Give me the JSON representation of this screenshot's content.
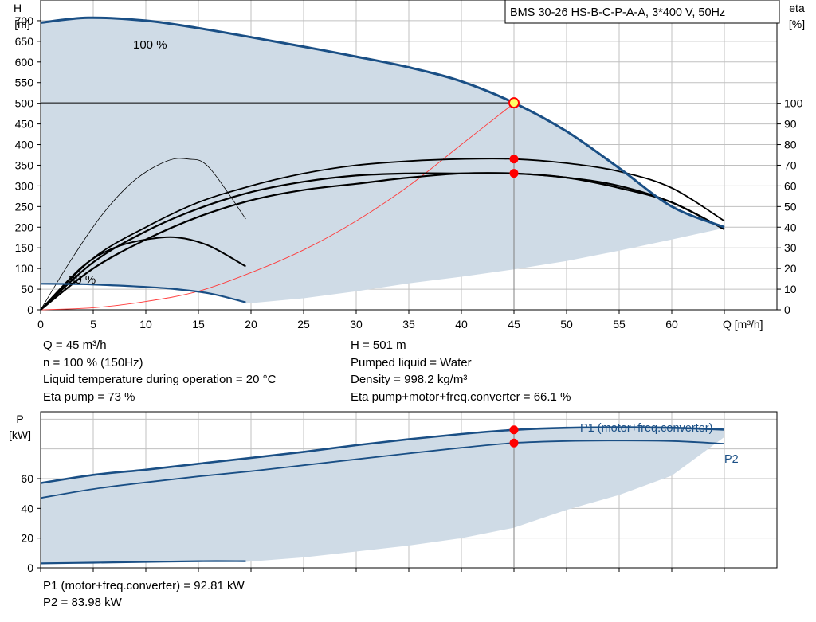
{
  "colors": {
    "area": "#cfdbe6",
    "grid": "#c0c0c0",
    "curve": "#1a4f85",
    "eta": "#000000",
    "npsh": "#ff3b3b",
    "marker": "#ff0000",
    "op_fill": "#ffff66"
  },
  "chart_data": [
    {
      "type": "line",
      "title": "BMS 30-26 HS-B-C-P-A-A, 3*400 V, 50Hz",
      "xlabel": "Q [m³/h]",
      "ylabel": [
        "H",
        "[m]"
      ],
      "y2label": [
        "eta",
        "[%]"
      ],
      "xlim": [
        0,
        70
      ],
      "ylim": [
        0,
        750
      ],
      "y2lim": [
        0,
        150
      ],
      "x_ticks": [
        0,
        5,
        10,
        15,
        20,
        25,
        30,
        35,
        40,
        45,
        50,
        55,
        60
      ],
      "y_ticks": [
        0,
        50,
        100,
        150,
        200,
        250,
        300,
        350,
        400,
        450,
        500,
        550,
        600,
        650,
        700
      ],
      "y2_ticks": [
        0,
        10,
        20,
        30,
        40,
        50,
        60,
        70,
        80,
        90,
        100
      ],
      "grid": true,
      "series": [
        {
          "name": "100 %",
          "axis": "H",
          "x": [
            0,
            4.5,
            10,
            15,
            20,
            25,
            30,
            35,
            40,
            45,
            50,
            55,
            60,
            65
          ],
          "y": [
            695,
            707,
            700,
            682,
            660,
            637,
            613,
            587,
            553,
            501,
            432,
            343,
            250,
            200
          ]
        },
        {
          "name": "30 %",
          "axis": "H",
          "x": [
            0,
            4,
            8,
            12,
            16,
            19.5
          ],
          "y": [
            63,
            62,
            58,
            52,
            40,
            18
          ]
        },
        {
          "axis": "eta",
          "x": [
            0,
            5,
            10,
            15,
            20,
            25,
            30,
            35,
            40,
            45,
            50,
            55,
            60,
            65
          ],
          "y": [
            0,
            23,
            38,
            49,
            57,
            62,
            65,
            66,
            66,
            66,
            64,
            60,
            52,
            39
          ]
        },
        {
          "axis": "eta",
          "x": [
            0,
            5,
            10,
            15,
            20,
            25,
            30,
            35,
            40,
            45,
            50,
            55,
            60,
            65
          ],
          "y": [
            0,
            20,
            34,
            45,
            53,
            58,
            61,
            64,
            66,
            66,
            64,
            59,
            52,
            39
          ]
        },
        {
          "axis": "eta",
          "x": [
            0,
            5,
            10,
            15,
            20,
            25,
            30,
            35,
            40,
            45,
            50,
            55,
            60,
            65
          ],
          "y": [
            0,
            25,
            40,
            52,
            60,
            66,
            70,
            72,
            73,
            73,
            71,
            67,
            59,
            43
          ]
        },
        {
          "axis": "eta",
          "x": [
            0,
            4,
            7,
            10,
            13,
            16,
            19.5
          ],
          "y": [
            0,
            21,
            30,
            34,
            35,
            31,
            21
          ]
        },
        {
          "axis": "eta",
          "x": [
            0,
            3,
            6,
            9,
            12,
            14,
            16,
            19.5
          ],
          "y": [
            0,
            25,
            47,
            63,
            72,
            73,
            69,
            44
          ]
        },
        {
          "axis": "H",
          "x": [
            0,
            5,
            10,
            15,
            20,
            25,
            30,
            35,
            40,
            45
          ],
          "y": [
            0,
            5,
            20,
            45,
            90,
            145,
            215,
            300,
            400,
            500
          ]
        }
      ],
      "op_point": {
        "x": 45,
        "H": 501,
        "eta": [
          73,
          66.1
        ]
      },
      "labels": {
        "top": "100 %",
        "bottom": "30 %"
      }
    },
    {
      "type": "line",
      "ylabel": [
        "P",
        "[kW]"
      ],
      "xlim": [
        0,
        70
      ],
      "ylim": [
        0,
        105
      ],
      "y_ticks": [
        0,
        20,
        40,
        60
      ],
      "x_ticks": [
        0,
        5,
        10,
        15,
        20,
        25,
        30,
        35,
        40,
        45,
        50,
        55,
        60
      ],
      "grid": true,
      "series": [
        {
          "name": "P1 (motor+freq.converter)",
          "x": [
            0,
            5,
            10,
            15,
            20,
            25,
            30,
            35,
            40,
            45,
            50,
            55,
            60,
            65
          ],
          "y": [
            57,
            62.5,
            66,
            70,
            74,
            78,
            82.5,
            86.5,
            90,
            92.8,
            94.2,
            94.5,
            94.2,
            93
          ]
        },
        {
          "name": "P2",
          "x": [
            0,
            5,
            10,
            15,
            20,
            25,
            30,
            35,
            40,
            45,
            50,
            55,
            60,
            65
          ],
          "y": [
            47,
            53,
            57.5,
            61.5,
            65,
            69,
            73,
            77,
            80.8,
            84,
            85.3,
            85.6,
            85.3,
            83.5
          ]
        },
        {
          "x": [
            0,
            5,
            10,
            15,
            19.5
          ],
          "y": [
            3,
            3.5,
            4,
            4.5,
            4.5
          ]
        }
      ],
      "op_point": {
        "x": 45,
        "P1": 92.81,
        "P2": 83.98
      }
    }
  ],
  "info_top": [
    "Q = 45 m³/h",
    "n = 100 % (150Hz)",
    "Liquid temperature during operation = 20 °C",
    "Eta pump = 73 %",
    "H = 501 m",
    "Pumped liquid = Water",
    "Density = 998.2 kg/m³",
    "Eta pump+motor+freq.converter = 66.1 %"
  ],
  "info_bottom": [
    "P1 (motor+freq.converter) = 92.81 kW",
    "P2 = 83.98 kW"
  ]
}
